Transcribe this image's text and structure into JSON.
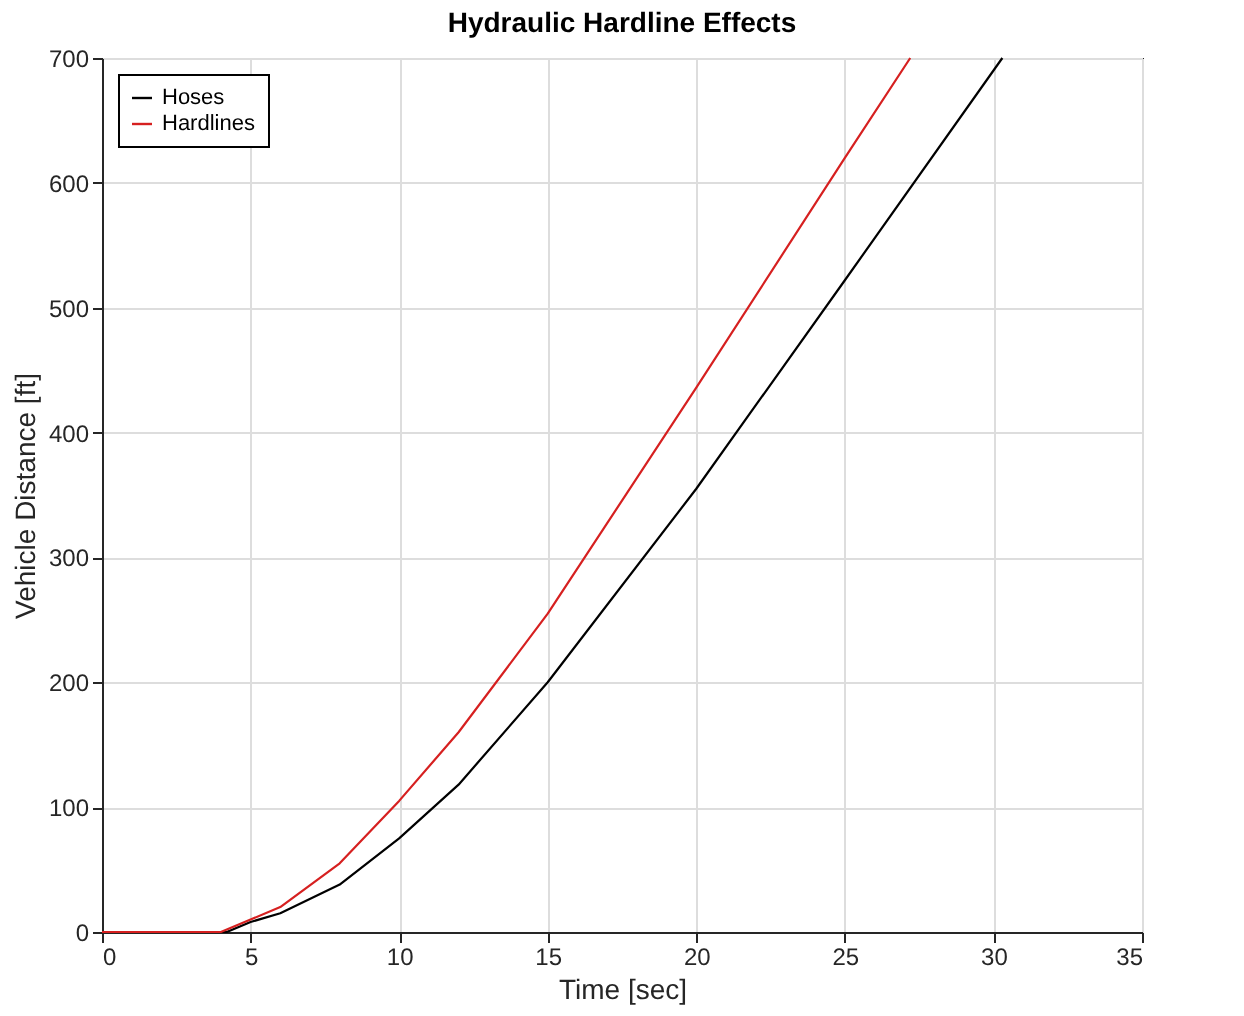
{
  "chart_data": {
    "type": "line",
    "title": "Hydraulic Hardline Effects",
    "xlabel": "Time [sec]",
    "ylabel": "Vehicle Distance [ft]",
    "xlim": [
      0,
      35
    ],
    "xticks": [
      0,
      5,
      10,
      15,
      20,
      25,
      30,
      35
    ],
    "ylim": [
      0,
      700
    ],
    "yticks": [
      0,
      100,
      200,
      300,
      400,
      500,
      600,
      700
    ],
    "grid": true,
    "legend": "top left",
    "line_style": "solid",
    "marker": "none",
    "series": [
      {
        "name": "Hoses",
        "color": "#000000",
        "x": [
          0,
          4.2,
          5,
          6,
          8,
          10,
          12,
          15,
          20,
          25,
          30.3
        ],
        "values": [
          0,
          0,
          8,
          15,
          38,
          75,
          118,
          200,
          355,
          522,
          700
        ]
      },
      {
        "name": "Hardlines",
        "color": "#d62020",
        "x": [
          0,
          4,
          5,
          6,
          8,
          10,
          12,
          15,
          20,
          25,
          27.2
        ],
        "values": [
          0,
          0,
          10,
          20,
          55,
          105,
          160,
          255,
          436,
          620,
          700
        ]
      }
    ]
  }
}
